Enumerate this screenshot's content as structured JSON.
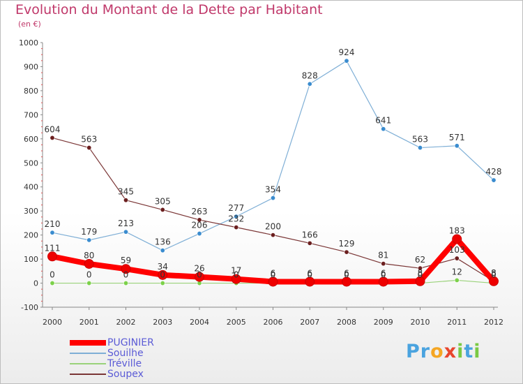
{
  "title": "Evolution du Montant de la Dette par Habitant",
  "subtitle": "(en €)",
  "logo": {
    "text": "Proxiti",
    "letters": [
      "P",
      "r",
      "o",
      "x",
      "i",
      "t",
      "i"
    ],
    "colors": [
      "#4aa3df",
      "#4aa3df",
      "#f5a623",
      "#e8452c",
      "#7ac943",
      "#4aa3df",
      "#7ac943"
    ]
  },
  "chart_data": {
    "type": "line",
    "categories": [
      "2000",
      "2001",
      "2002",
      "2003",
      "2004",
      "2005",
      "2006",
      "2007",
      "2008",
      "2009",
      "2010",
      "2011",
      "2012"
    ],
    "ylim": [
      -100,
      1000
    ],
    "yticks": [
      "-100",
      "0",
      "100",
      "200",
      "300",
      "400",
      "500",
      "600",
      "700",
      "800",
      "900",
      "1000"
    ],
    "grid": false,
    "legend_position": "bottom-left",
    "series": [
      {
        "name": "PUGINIER",
        "color": "#ff0000",
        "width": 8,
        "marker": "#ee0000",
        "values": [
          111,
          80,
          59,
          34,
          26,
          17,
          6,
          6,
          6,
          6,
          8,
          183,
          8
        ],
        "labels": [
          "111",
          "80",
          "59",
          "34",
          "26",
          "17",
          "6",
          "6",
          "6",
          "6",
          "8",
          "183",
          "8"
        ]
      },
      {
        "name": "Souilhe",
        "color": "#7fafd6",
        "width": 1.2,
        "marker": "#3a8ccf",
        "values": [
          210,
          179,
          213,
          136,
          206,
          277,
          354,
          828,
          924,
          641,
          563,
          571,
          428
        ],
        "labels": [
          "210",
          "179",
          "213",
          "136",
          "206",
          "277",
          "354",
          "828",
          "924",
          "641",
          "563",
          "571",
          "428"
        ]
      },
      {
        "name": "Tréville",
        "color": "#9ad27a",
        "width": 1.2,
        "marker": "#7cd14a",
        "values": [
          0,
          0,
          0,
          0,
          0,
          0,
          0,
          0,
          0,
          0,
          0,
          12,
          0
        ],
        "labels": [
          "0",
          "0",
          "0",
          "0",
          "0",
          "0",
          "0",
          "0",
          "0",
          "0",
          "0",
          "12",
          "0"
        ]
      },
      {
        "name": "Soupex",
        "color": "#7a3535",
        "width": 1.2,
        "marker": "#6b1f1f",
        "values": [
          604,
          563,
          345,
          305,
          263,
          232,
          200,
          166,
          129,
          81,
          62,
          103,
          8
        ],
        "labels": [
          "604",
          "563",
          "345",
          "305",
          "263",
          "232",
          "200",
          "166",
          "129",
          "81",
          "62",
          "103",
          "8"
        ]
      }
    ]
  }
}
